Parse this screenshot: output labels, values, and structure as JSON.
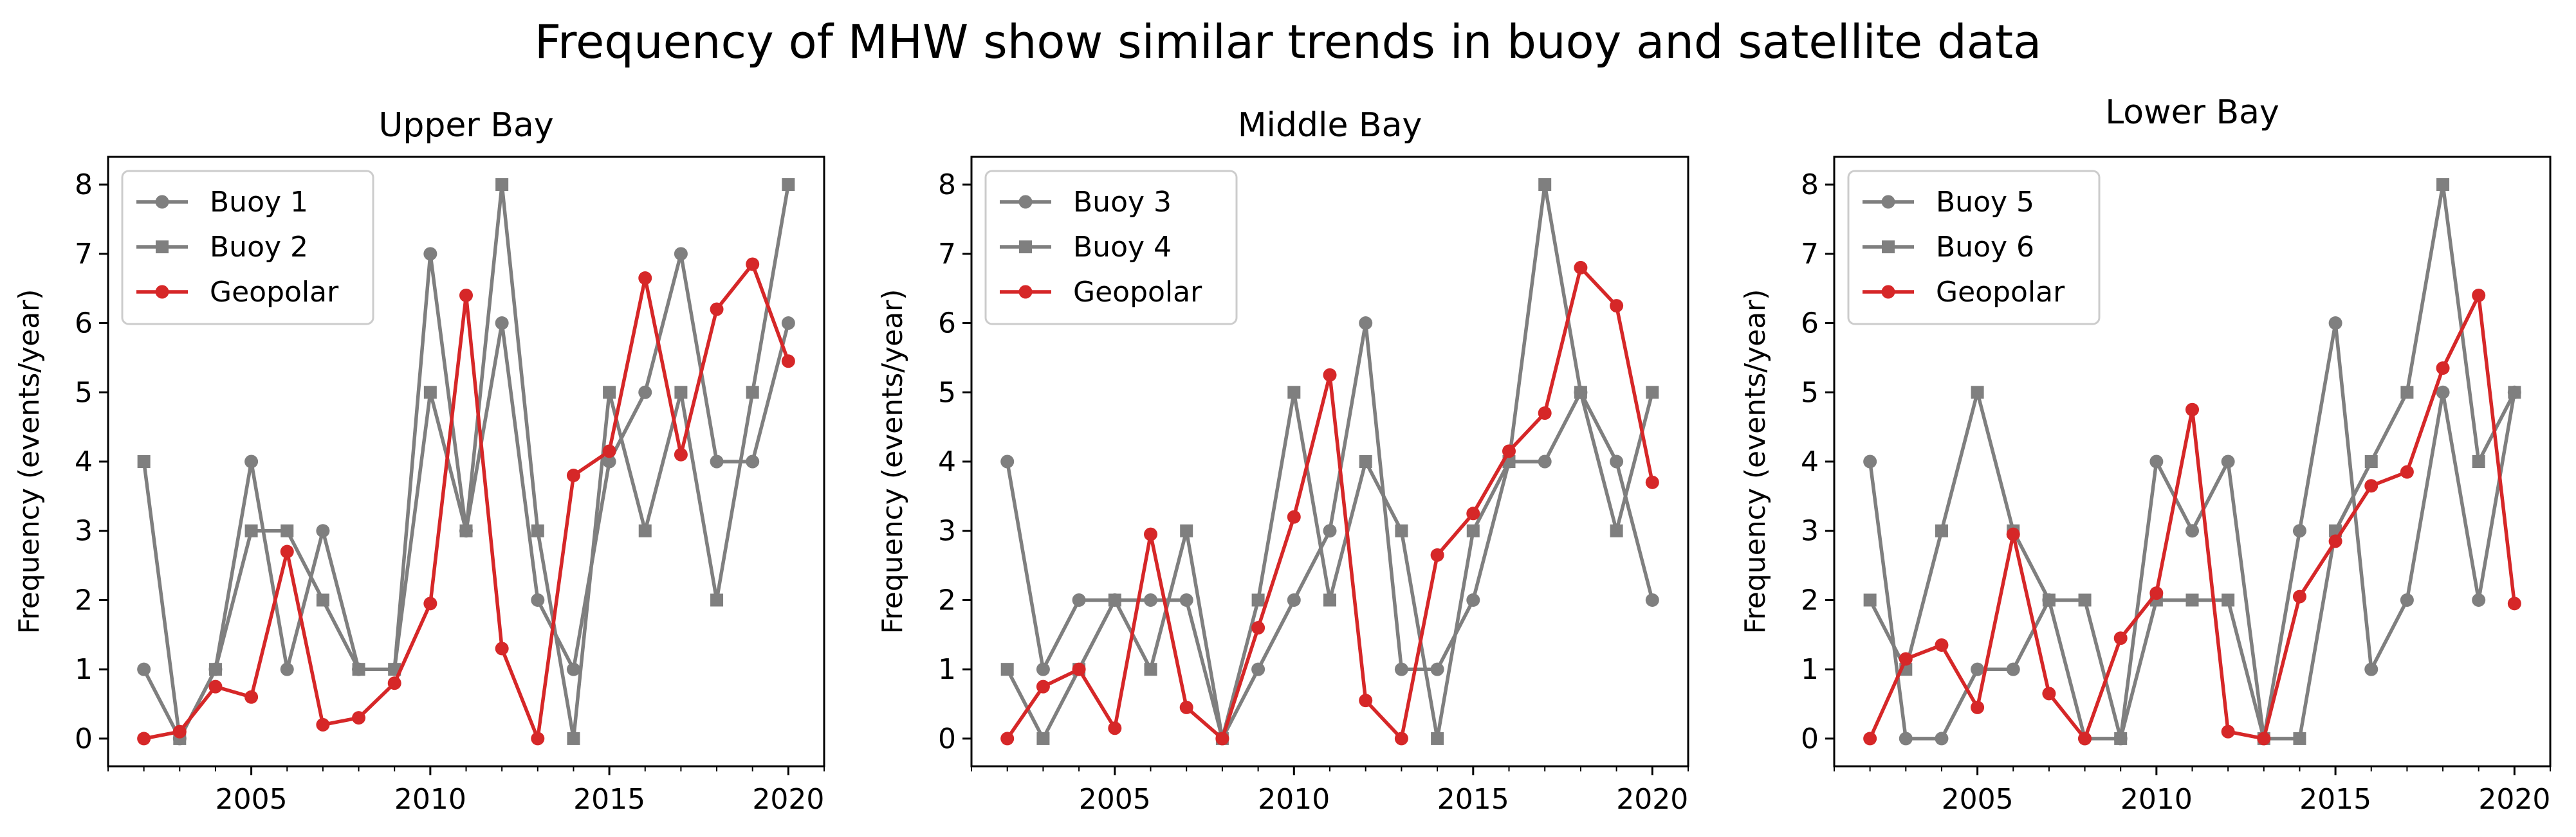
{
  "figure_title": "Frequency of MHW show similar trends in buoy and satellite data",
  "colors": {
    "buoy": "#7f7f7f",
    "geopolar": "#d62728"
  },
  "chart_data": [
    {
      "type": "line",
      "title": "Upper Bay",
      "xlabel": "",
      "ylabel": "Frequency (events/year)",
      "xlim": [
        2001,
        2021
      ],
      "ylim": [
        -0.4,
        8.4
      ],
      "xticks": [
        2005,
        2010,
        2015,
        2020
      ],
      "yticks": [
        0,
        1,
        2,
        3,
        4,
        5,
        6,
        7,
        8
      ],
      "legend_position": "upper-left",
      "x": [
        2002,
        2003,
        2004,
        2005,
        2006,
        2007,
        2008,
        2009,
        2010,
        2011,
        2012,
        2013,
        2014,
        2015,
        2016,
        2017,
        2018,
        2019,
        2020
      ],
      "series": [
        {
          "name": "Buoy 1",
          "marker": "circle",
          "color": "#7f7f7f",
          "values": [
            1,
            0,
            1,
            4,
            1,
            3,
            1,
            1,
            7,
            3,
            6,
            2,
            1,
            4,
            5,
            7,
            4,
            4,
            6
          ]
        },
        {
          "name": "Buoy 2",
          "marker": "square",
          "color": "#7f7f7f",
          "values": [
            4,
            0,
            1,
            3,
            3,
            2,
            1,
            1,
            5,
            3,
            8,
            3,
            0,
            5,
            3,
            5,
            2,
            5,
            8
          ]
        },
        {
          "name": "Geopolar",
          "marker": "circle",
          "color": "#d62728",
          "values": [
            0,
            0.1,
            0.75,
            0.6,
            2.7,
            0.2,
            0.3,
            0.8,
            1.95,
            6.4,
            1.3,
            0,
            3.8,
            4.15,
            6.65,
            4.1,
            6.2,
            6.85,
            5.45
          ]
        }
      ]
    },
    {
      "type": "line",
      "title": "Middle Bay",
      "xlabel": "",
      "ylabel": "Frequency (events/year)",
      "xlim": [
        2001,
        2021
      ],
      "ylim": [
        -0.4,
        8.4
      ],
      "xticks": [
        2005,
        2010,
        2015,
        2020
      ],
      "yticks": [
        0,
        1,
        2,
        3,
        4,
        5,
        6,
        7,
        8
      ],
      "legend_position": "upper-left",
      "x": [
        2002,
        2003,
        2004,
        2005,
        2006,
        2007,
        2008,
        2009,
        2010,
        2011,
        2012,
        2013,
        2014,
        2015,
        2016,
        2017,
        2018,
        2019,
        2020
      ],
      "series": [
        {
          "name": "Buoy 3",
          "marker": "circle",
          "color": "#7f7f7f",
          "values": [
            4,
            1,
            2,
            2,
            2,
            2,
            0,
            1,
            2,
            3,
            6,
            1,
            1,
            2,
            4,
            4,
            5,
            4,
            2
          ]
        },
        {
          "name": "Buoy 4",
          "marker": "square",
          "color": "#7f7f7f",
          "values": [
            1,
            0,
            1,
            2,
            1,
            3,
            0,
            2,
            5,
            2,
            4,
            3,
            0,
            3,
            4,
            8,
            5,
            3,
            5
          ]
        },
        {
          "name": "Geopolar",
          "marker": "circle",
          "color": "#d62728",
          "values": [
            0,
            0.75,
            1,
            0.15,
            2.95,
            0.45,
            0,
            1.6,
            3.2,
            5.25,
            0.55,
            0,
            2.65,
            3.25,
            4.15,
            4.7,
            6.8,
            6.25,
            3.7
          ]
        }
      ]
    },
    {
      "type": "line",
      "title": "Lower Bay",
      "xlabel": "",
      "ylabel": "Frequency (events/year)",
      "xlim": [
        2001,
        2021
      ],
      "ylim": [
        -0.4,
        8.4
      ],
      "xticks": [
        2005,
        2010,
        2015,
        2020
      ],
      "yticks": [
        0,
        1,
        2,
        3,
        4,
        5,
        6,
        7,
        8
      ],
      "legend_position": "upper-left",
      "x": [
        2002,
        2003,
        2004,
        2005,
        2006,
        2007,
        2008,
        2009,
        2010,
        2011,
        2012,
        2013,
        2014,
        2015,
        2016,
        2017,
        2018,
        2019,
        2020
      ],
      "series": [
        {
          "name": "Buoy 5",
          "marker": "circle",
          "color": "#7f7f7f",
          "values": [
            4,
            0,
            0,
            1,
            1,
            2,
            0,
            0,
            4,
            3,
            4,
            0,
            3,
            6,
            1,
            2,
            5,
            2,
            5
          ]
        },
        {
          "name": "Buoy 6",
          "marker": "square",
          "color": "#7f7f7f",
          "values": [
            2,
            1,
            3,
            5,
            3,
            2,
            2,
            0,
            2,
            2,
            2,
            0,
            0,
            3,
            4,
            5,
            8,
            4,
            5
          ]
        },
        {
          "name": "Geopolar",
          "marker": "circle",
          "color": "#d62728",
          "values": [
            0,
            1.15,
            1.35,
            0.45,
            2.95,
            0.65,
            0,
            1.45,
            2.1,
            4.75,
            0.1,
            0,
            2.05,
            2.85,
            3.65,
            3.85,
            5.35,
            6.4,
            1.95
          ]
        }
      ]
    }
  ]
}
